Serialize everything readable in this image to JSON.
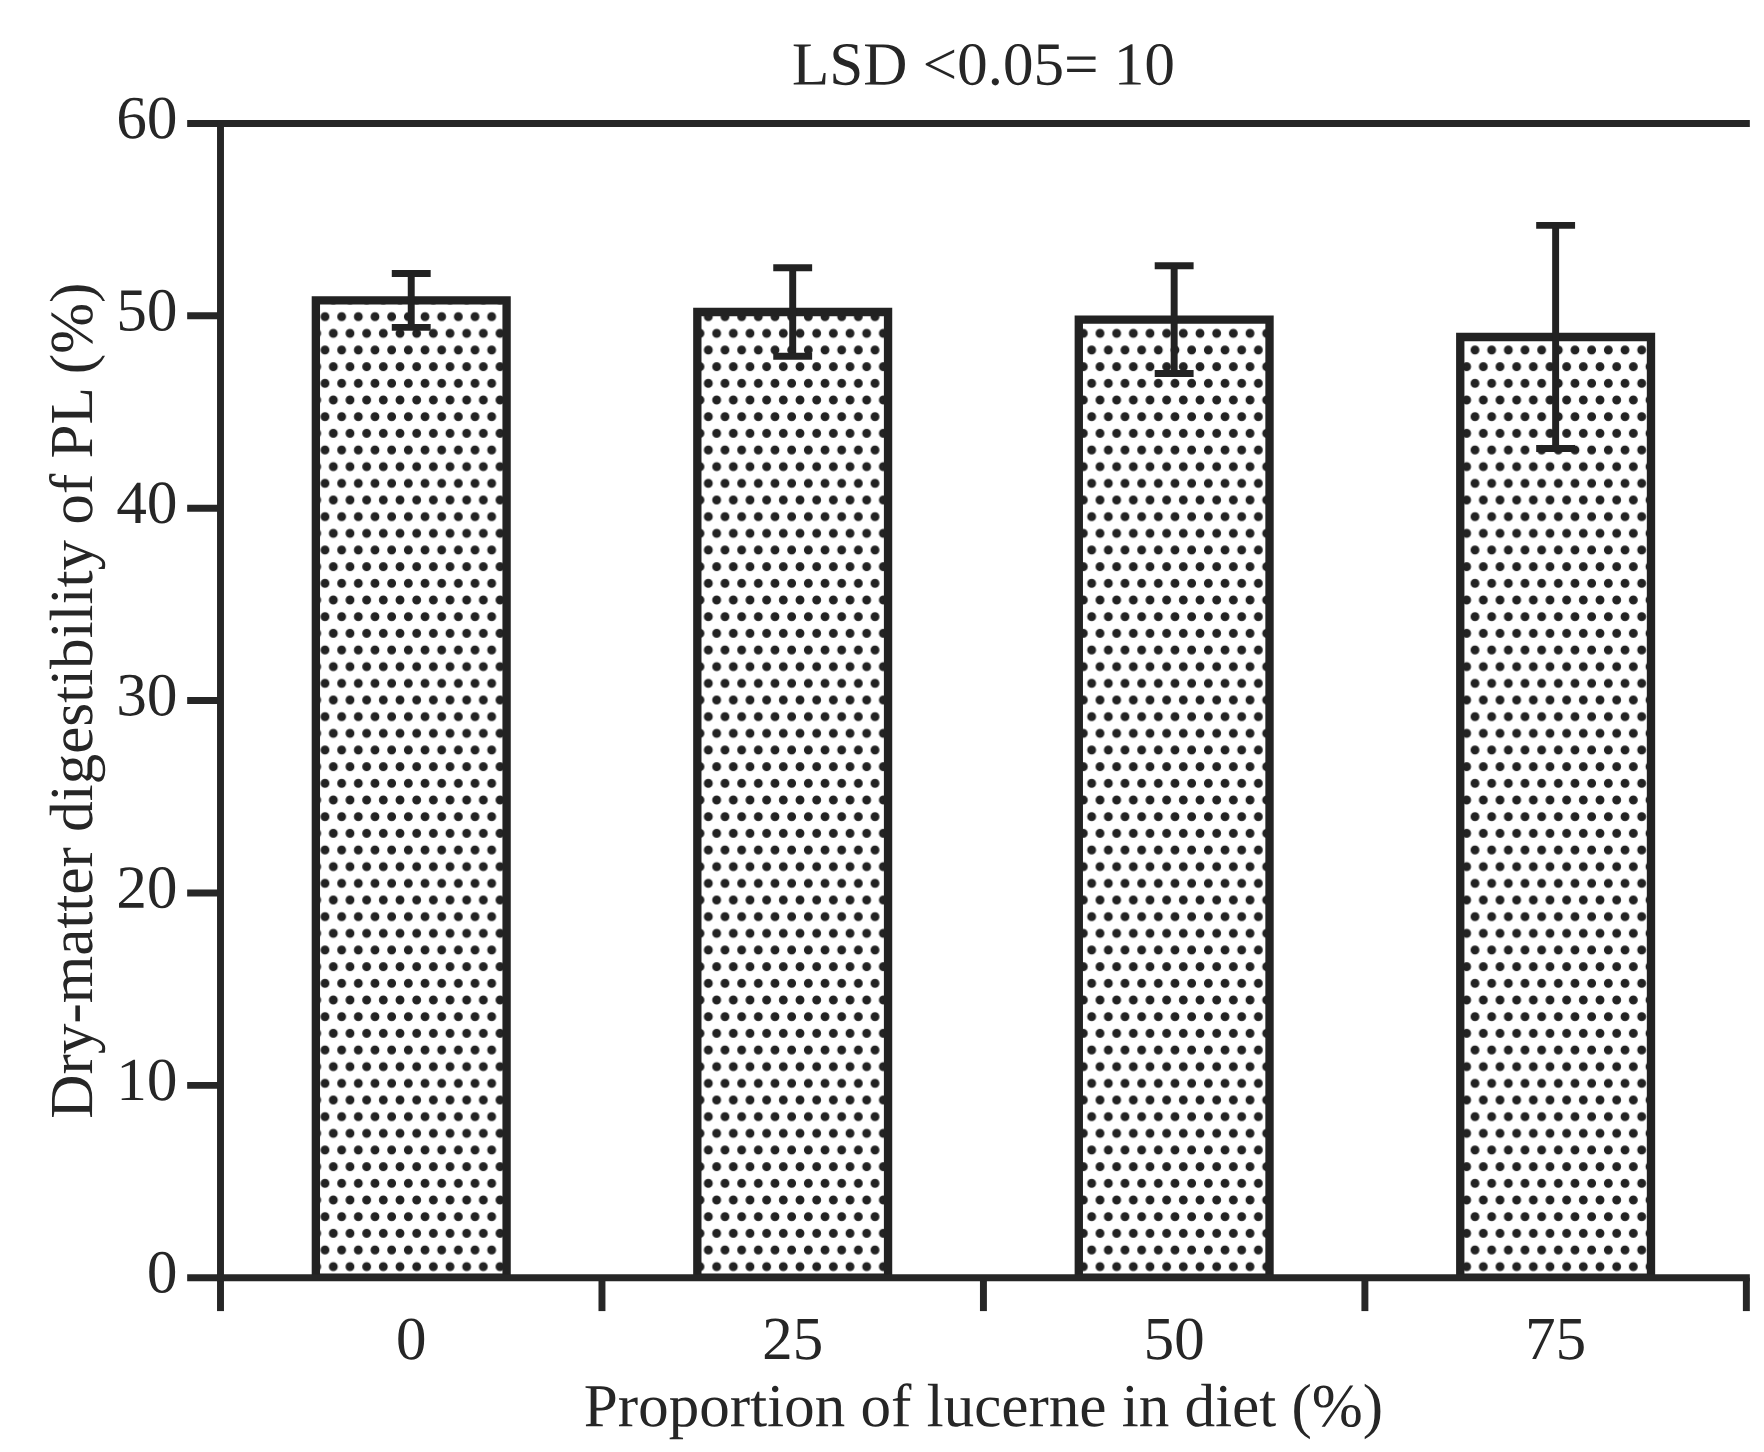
{
  "chart_data": {
    "type": "bar",
    "title": "LSD <0.05= 10",
    "xlabel": "Proportion of lucerne in diet (%)",
    "ylabel": "Dry-matter digestibility of PL (%)",
    "categories": [
      "0",
      "25",
      "50",
      "75"
    ],
    "values": [
      50.8,
      50.2,
      49.8,
      48.9
    ],
    "errors": [
      1.4,
      2.3,
      2.8,
      5.8
    ],
    "color": "#222222",
    "ylim": [
      0,
      60
    ],
    "yticks": [
      0,
      10,
      20,
      30,
      40,
      50,
      60
    ]
  }
}
